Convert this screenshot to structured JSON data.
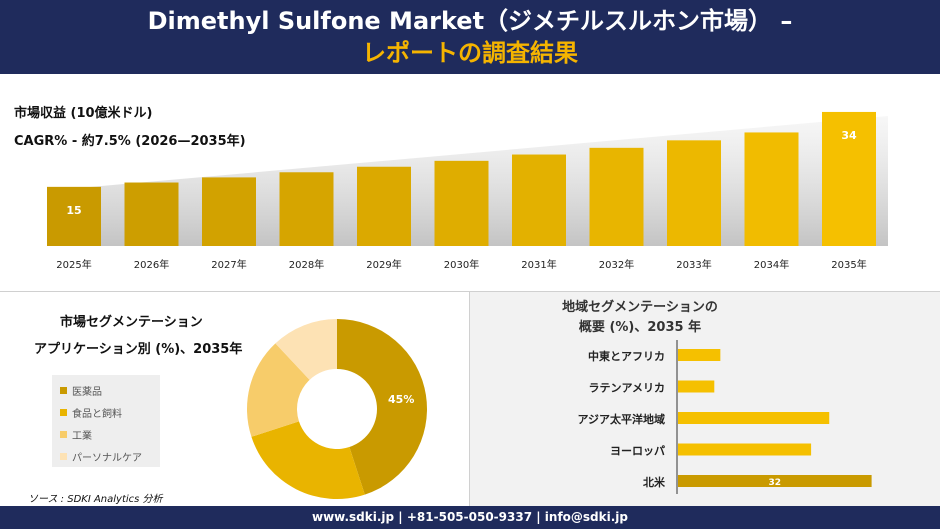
{
  "header": {
    "title_line1": "Dimethyl Sulfone Market（ジメチルスルホン市場） –",
    "title_line2": "レポートの調査結果"
  },
  "colors": {
    "navy": "#1f2b5c",
    "gold": "#f5b400",
    "bar_dark": "#c99a00",
    "bar_light": "#f5c000"
  },
  "chart_data": [
    {
      "type": "bar",
      "title": "市場収益 (10億米ドル)",
      "subtitle": "CAGR% - 約7.5% (2026—2035年)",
      "categories": [
        "2025年",
        "2026年",
        "2027年",
        "2028年",
        "2029年",
        "2030年",
        "2031年",
        "2032年",
        "2033年",
        "2034年",
        "2035年"
      ],
      "values": [
        15,
        16.1,
        17.4,
        18.7,
        20.1,
        21.6,
        23.2,
        24.9,
        26.8,
        28.8,
        34
      ],
      "data_labels": [
        "15",
        "",
        "",
        "",
        "",
        "",
        "",
        "",
        "",
        "",
        "34"
      ],
      "ylim": [
        0,
        35
      ]
    },
    {
      "type": "pie",
      "title": "市場セグメンテーション",
      "subtitle": "アプリケーション別 (%)、2035年",
      "labels": [
        "医薬品",
        "食品と飼料",
        "工業",
        "パーソナルケア"
      ],
      "values": [
        45,
        25,
        18,
        12
      ],
      "data_labels": [
        "45%",
        "",
        "",
        ""
      ],
      "colors": [
        "#c99a00",
        "#e9b400",
        "#f7cc6a",
        "#fde2b4"
      ],
      "legend": "left"
    },
    {
      "type": "bar",
      "orientation": "horizontal",
      "title": "地域セグメンテーションの",
      "subtitle": "概要 (%)、2035 年",
      "categories": [
        "中東とアフリカ",
        "ラテンアメリカ",
        "アジア太平洋地域",
        "ヨーロッパ",
        "北米"
      ],
      "values": [
        7,
        6,
        25,
        22,
        32
      ],
      "data_labels": [
        "",
        "",
        "",
        "",
        "32"
      ],
      "xlim": [
        0,
        36
      ]
    }
  ],
  "source": "ソース : SDKI Analytics 分析",
  "footer": "www.sdki.jp | +81-505-050-9337 | info@sdki.jp"
}
